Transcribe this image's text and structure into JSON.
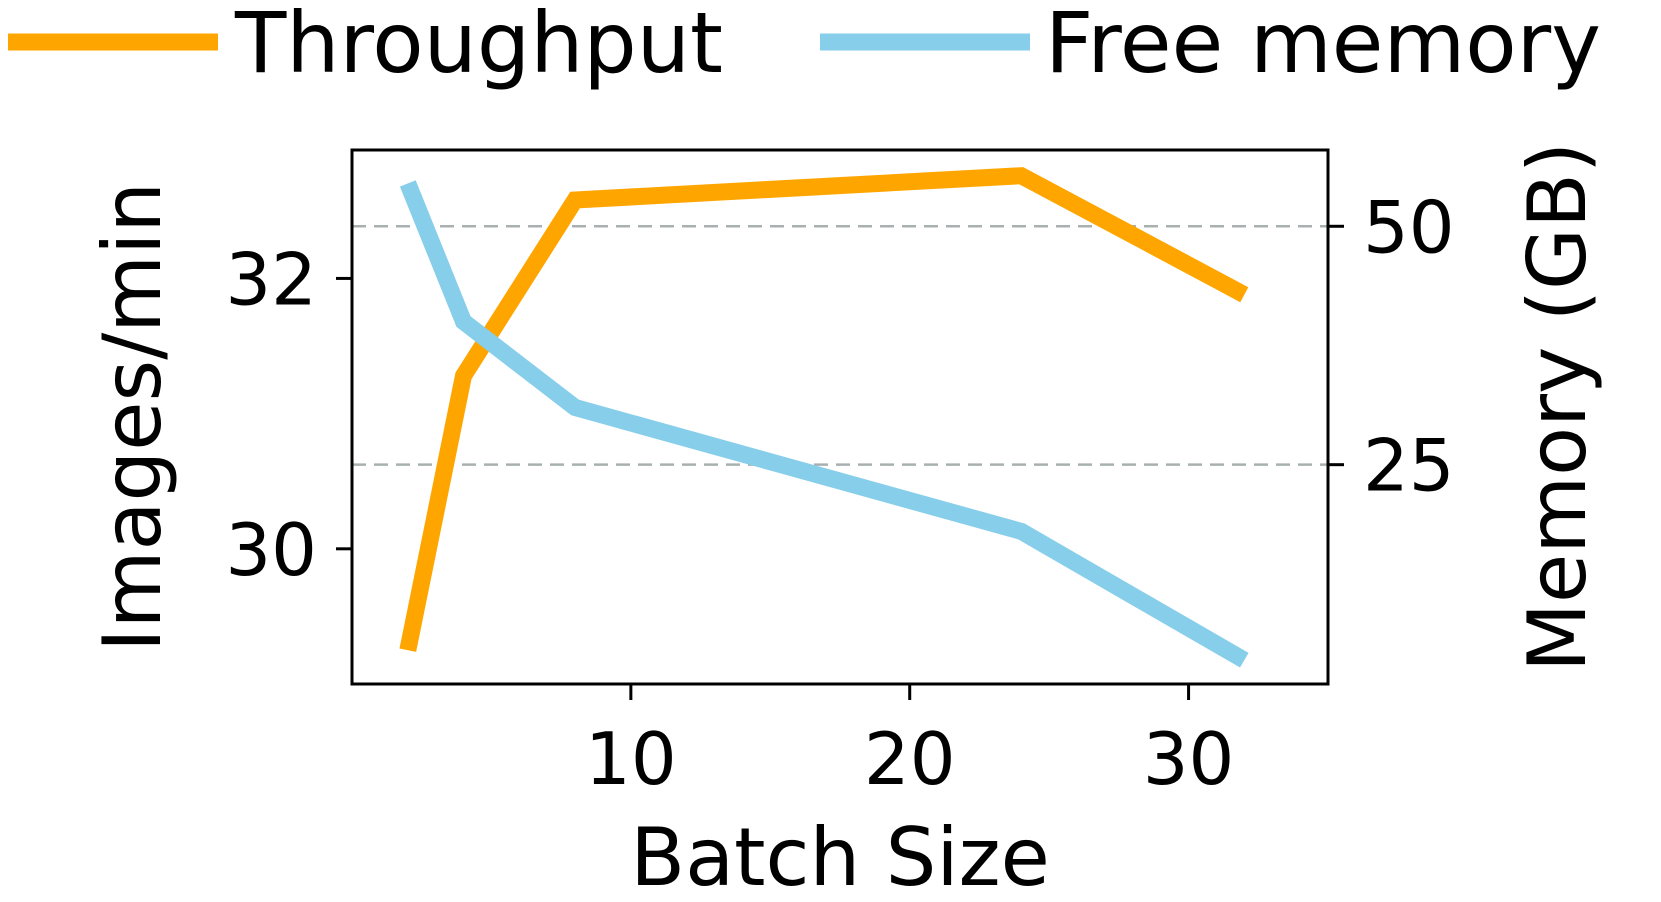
{
  "chart_data": {
    "type": "line",
    "title": "",
    "x": [
      2,
      4,
      8,
      24,
      32
    ],
    "xlabel": "Batch Size",
    "xlim": [
      0,
      35
    ],
    "xticks": [
      10,
      20,
      30
    ],
    "series": [
      {
        "name": "Throughput",
        "axis": "left",
        "color": "#FFA500",
        "values": [
          29.25,
          31.28,
          32.58,
          32.76,
          31.88
        ]
      },
      {
        "name": "Free memory",
        "axis": "right",
        "color": "#87CEEB",
        "values": [
          54.5,
          40.0,
          31.0,
          18.0,
          4.5
        ]
      }
    ],
    "ylabel_left": "Images/min",
    "ylim_left": [
      29.0,
      32.95
    ],
    "yticks_left": [
      30,
      32
    ],
    "ylabel_right": "Memory (GB)",
    "ylim_right": [
      2.0,
      58.0
    ],
    "yticks_right": [
      25,
      50
    ],
    "grid": "horizontal dashed at right-axis ticks",
    "legend_position": "top, outside plot"
  }
}
